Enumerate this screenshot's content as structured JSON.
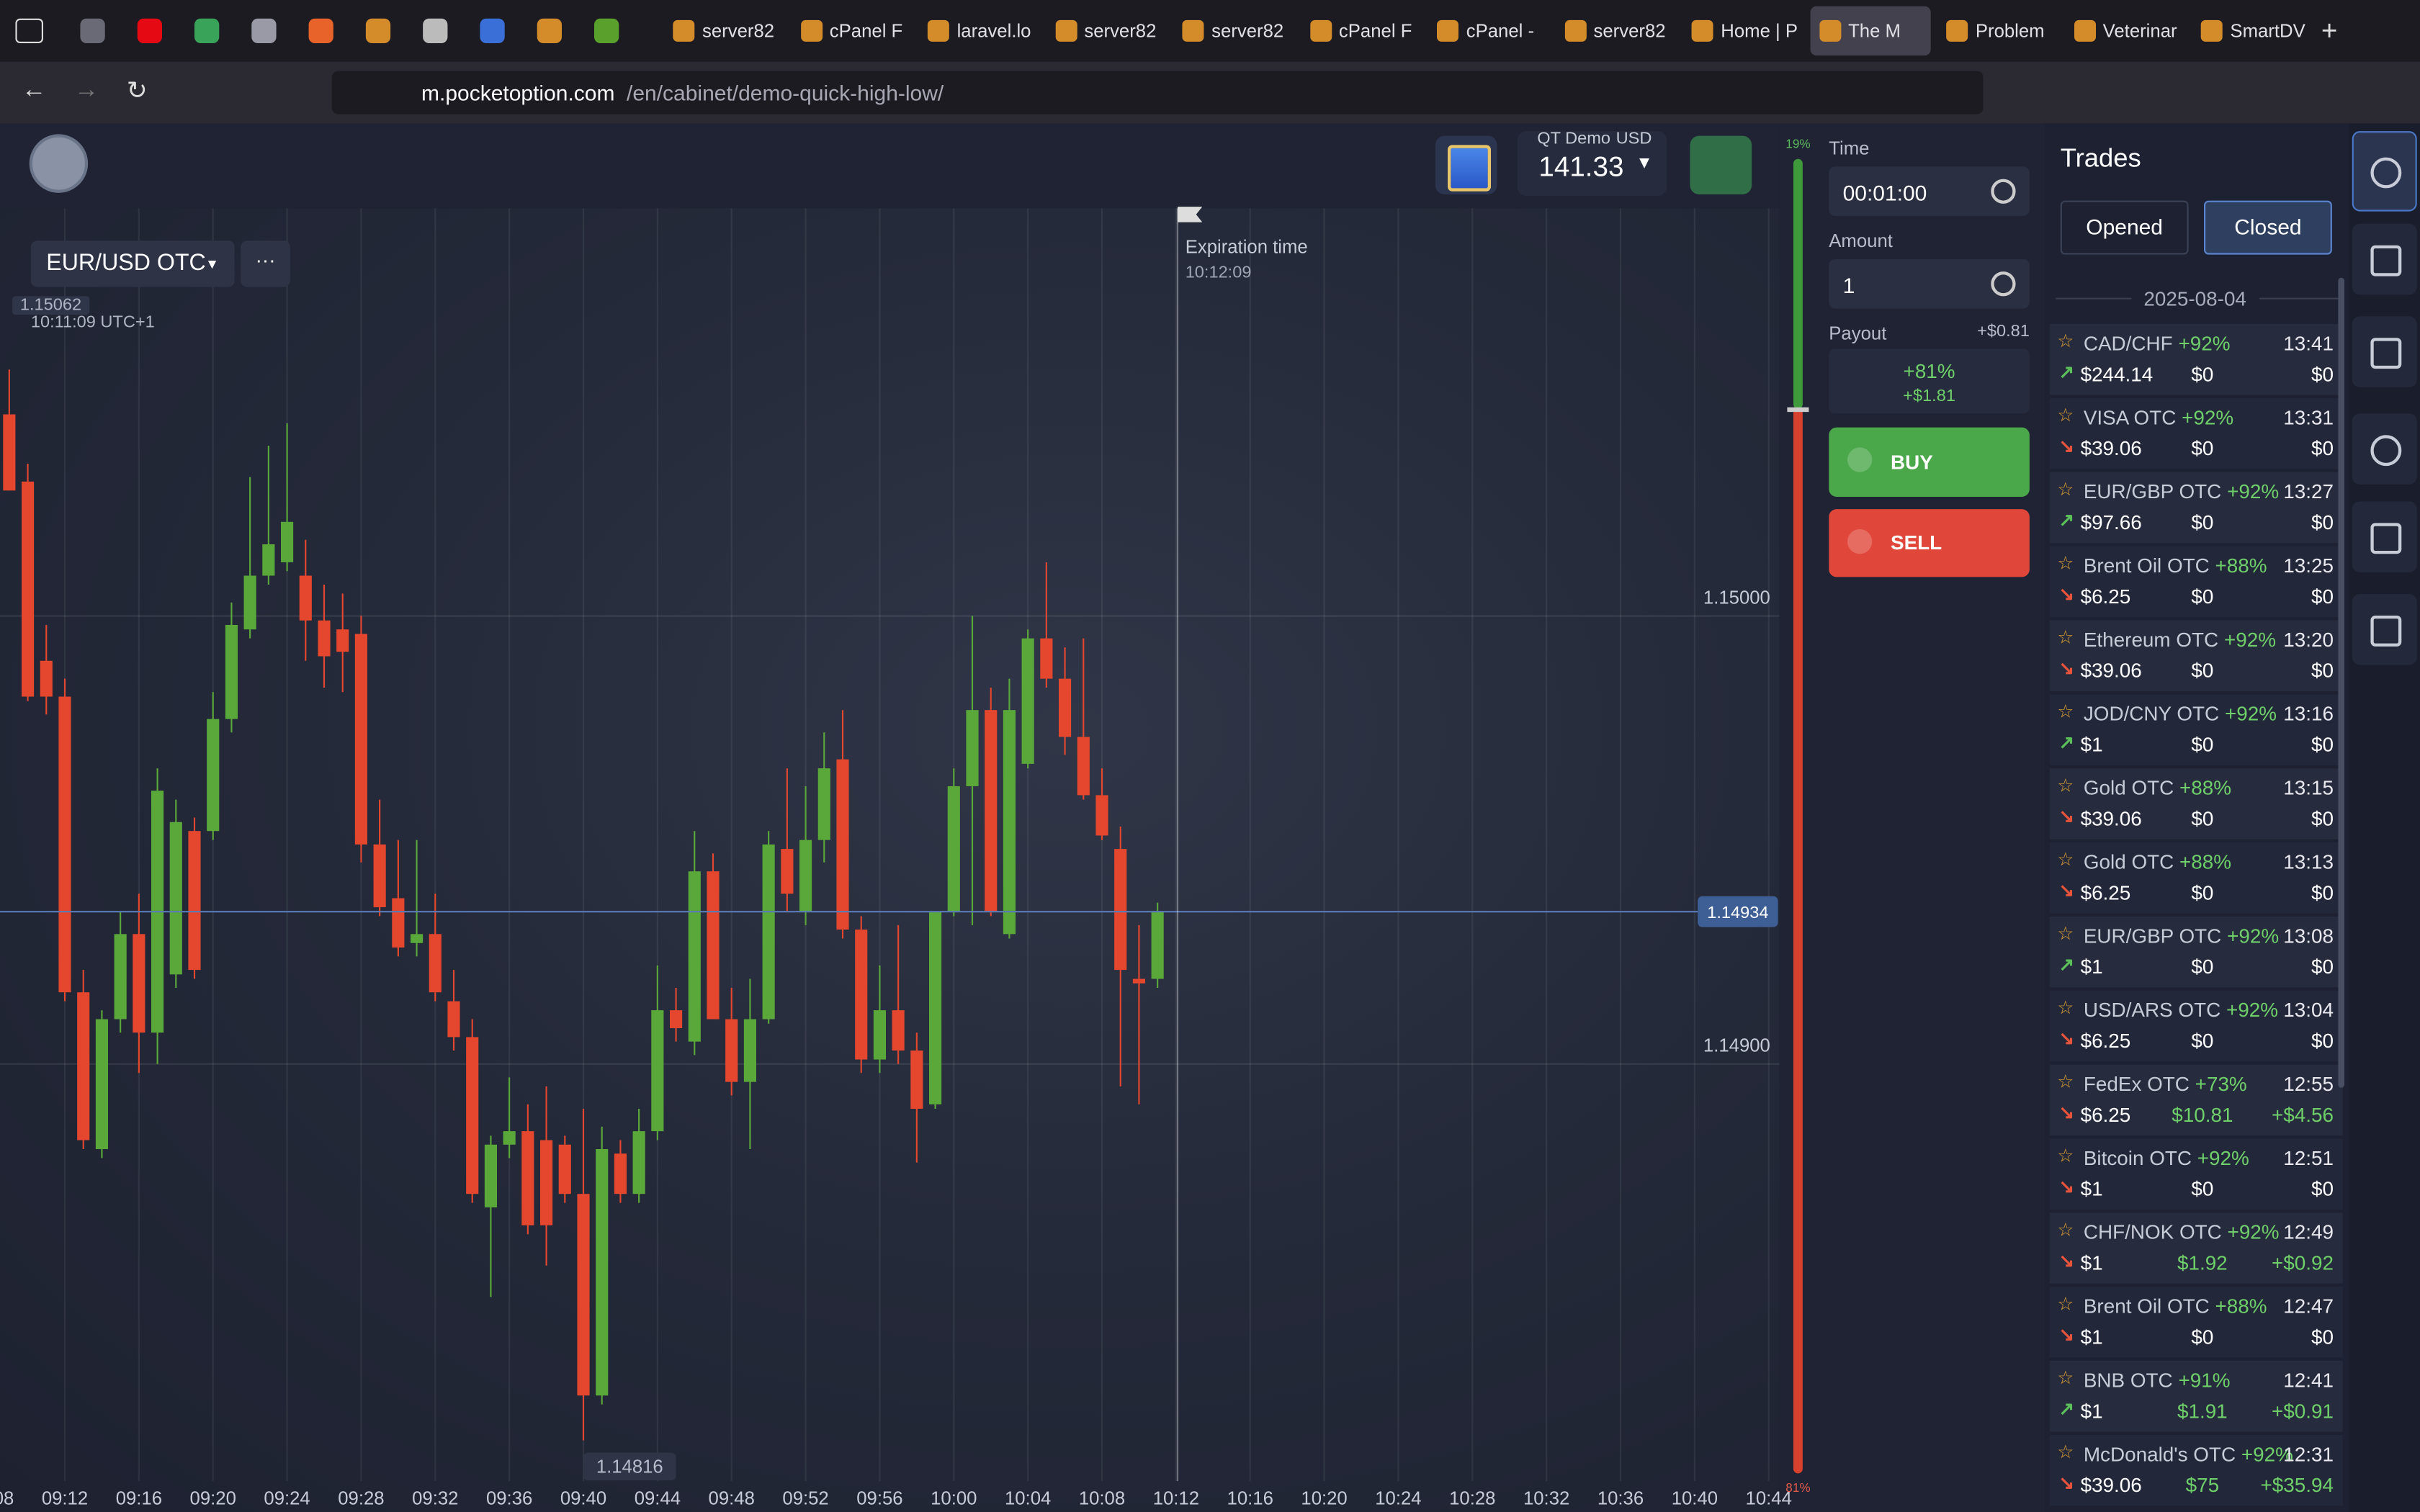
{
  "browser": {
    "tabs": [
      "server82",
      "cPanel F",
      "laravel.lo",
      "server82",
      "server82",
      "cPanel F",
      "cPanel -",
      "server82",
      "Home | P",
      "The M",
      "Problem",
      "Veterinar",
      "SmartDV"
    ],
    "active_tab": 9,
    "url_domain": "m.pocketoption.com",
    "url_path": "/en/cabinet/demo-quick-high-low/"
  },
  "header": {
    "account": "QT Demo",
    "currency": "USD",
    "balance": "141.33"
  },
  "chart": {
    "type": "candlestick",
    "asset": "EUR/USD OTC",
    "crosshair_price": 1.15062,
    "crosshair_time": "10:11:09 UTC+1",
    "expiration_label": "Expiration time",
    "expiration_time": "10:12:09",
    "current_price": 1.14934,
    "low_price": 1.14816,
    "ylim": [
      1.148,
      1.15091
    ],
    "yticks": [
      {
        "value": 1.15,
        "label": "1.15000"
      },
      {
        "value": 1.149,
        "label": "1.14900"
      }
    ],
    "xticks": [
      "09:08",
      "09:12",
      "09:16",
      "09:20",
      "09:24",
      "09:28",
      "09:32",
      "09:36",
      "09:40",
      "09:44",
      "09:48",
      "09:52",
      "09:56",
      "10:00",
      "10:04",
      "10:08",
      "10:12",
      "10:16",
      "10:20",
      "10:24",
      "10:28",
      "10:32",
      "10:36",
      "10:40",
      "10:44"
    ],
    "up_color": "#5aa83a",
    "down_color": "#e4472d",
    "candles": {
      "open": [
        1.15045,
        1.1503,
        1.1499,
        1.14982,
        1.14916,
        1.14881,
        1.1491,
        1.14929,
        1.14907,
        1.1492,
        1.14952,
        1.14952,
        1.14977,
        1.14997,
        1.15009,
        1.15012,
        1.15009,
        1.14999,
        1.14997,
        1.14996,
        1.14949,
        1.14937,
        1.14927,
        1.14929,
        1.14914,
        1.14906,
        1.14868,
        1.14882,
        1.14885,
        1.14883,
        1.14882,
        1.14871,
        1.14826,
        1.1488,
        1.14871,
        1.14885,
        1.14912,
        1.14905,
        1.14943,
        1.1491,
        1.14896,
        1.1491,
        1.14948,
        1.14934,
        1.1495,
        1.14968,
        1.1493,
        1.14901,
        1.14912,
        1.14903,
        1.14891,
        1.14934,
        1.14962,
        1.14979,
        1.14929,
        1.14967,
        1.14995,
        1.14986,
        1.14973,
        1.1496,
        1.14948,
        1.14919,
        1.14919
      ],
      "high": [
        1.15055,
        1.15034,
        1.14998,
        1.14986,
        1.14921,
        1.14912,
        1.14934,
        1.14938,
        1.14966,
        1.14959,
        1.14955,
        1.14983,
        1.15003,
        1.15031,
        1.15038,
        1.15043,
        1.15017,
        1.15007,
        1.15005,
        1.15,
        1.14959,
        1.1495,
        1.1495,
        1.14938,
        1.14921,
        1.1491,
        1.14884,
        1.14897,
        1.14891,
        1.14895,
        1.14884,
        1.1489,
        1.14886,
        1.14883,
        1.1489,
        1.14922,
        1.14917,
        1.14952,
        1.14947,
        1.14917,
        1.14919,
        1.14952,
        1.14966,
        1.14962,
        1.14974,
        1.14979,
        1.14933,
        1.14922,
        1.14931,
        1.14907,
        1.14934,
        1.14966,
        1.15,
        1.14984,
        1.14986,
        1.14997,
        1.15012,
        1.14993,
        1.14995,
        1.14966,
        1.14953,
        1.14931,
        1.14936
      ],
      "low": [
        1.15028,
        1.14981,
        1.14978,
        1.14914,
        1.14881,
        1.14879,
        1.14907,
        1.14898,
        1.149,
        1.14917,
        1.14919,
        1.1495,
        1.14974,
        1.14995,
        1.15007,
        1.1501,
        1.1499,
        1.14984,
        1.14983,
        1.14945,
        1.14933,
        1.14924,
        1.14924,
        1.14914,
        1.14903,
        1.14869,
        1.14848,
        1.14879,
        1.14862,
        1.14855,
        1.14869,
        1.14816,
        1.14824,
        1.14869,
        1.14869,
        1.14883,
        1.14905,
        1.14902,
        1.1491,
        1.14893,
        1.14881,
        1.14909,
        1.14934,
        1.14931,
        1.14945,
        1.14928,
        1.14898,
        1.14898,
        1.149,
        1.14878,
        1.1489,
        1.14933,
        1.14931,
        1.14933,
        1.14928,
        1.14966,
        1.14984,
        1.14969,
        1.14959,
        1.1495,
        1.14895,
        1.14891,
        1.14917
      ],
      "close": [
        1.15028,
        1.14982,
        1.14982,
        1.14916,
        1.14883,
        1.1491,
        1.14929,
        1.14907,
        1.14961,
        1.14954,
        1.14921,
        1.14977,
        1.14998,
        1.15009,
        1.15016,
        1.15021,
        1.14999,
        1.14991,
        1.14992,
        1.14949,
        1.14935,
        1.14926,
        1.14929,
        1.14916,
        1.14906,
        1.14871,
        1.14882,
        1.14885,
        1.14864,
        1.14864,
        1.14871,
        1.14826,
        1.14881,
        1.14871,
        1.14885,
        1.14912,
        1.14908,
        1.14943,
        1.1491,
        1.14896,
        1.1491,
        1.14949,
        1.14938,
        1.1495,
        1.14966,
        1.1493,
        1.14901,
        1.14912,
        1.14903,
        1.1489,
        1.14934,
        1.14962,
        1.14979,
        1.14934,
        1.14979,
        1.14995,
        1.14986,
        1.14973,
        1.1496,
        1.14951,
        1.14921,
        1.14918,
        1.14934
      ]
    }
  },
  "meter": {
    "values": [
      19,
      81
    ],
    "value_labels": [
      "19%",
      "81%"
    ],
    "colors": [
      "#3f9a3c",
      "#d9412f"
    ]
  },
  "order": {
    "time_label": "Time",
    "time": "00:01:00",
    "amount_label": "Amount",
    "amount": "1",
    "payout_label": "Payout",
    "payout_profit": "+$0.81",
    "payout_percent": "+81%",
    "payout_total": "+$1.81",
    "buy": "BUY",
    "sell": "SELL"
  },
  "trades": {
    "title": "Trades",
    "tabs": [
      "Opened",
      "Closed"
    ],
    "active_tab": 1,
    "date": "2025-08-04",
    "items": [
      {
        "asset": "CAD/CHF",
        "percent": "+92%",
        "time": "13:41",
        "direction": "up",
        "amount": "$244.14",
        "payout": "$0",
        "profit": "$0"
      },
      {
        "asset": "VISA OTC",
        "percent": "+92%",
        "time": "13:31",
        "direction": "down",
        "amount": "$39.06",
        "payout": "$0",
        "profit": "$0"
      },
      {
        "asset": "EUR/GBP OTC",
        "percent": "+92%",
        "time": "13:27",
        "direction": "up",
        "amount": "$97.66",
        "payout": "$0",
        "profit": "$0"
      },
      {
        "asset": "Brent Oil OTC",
        "percent": "+88%",
        "time": "13:25",
        "direction": "down",
        "amount": "$6.25",
        "payout": "$0",
        "profit": "$0"
      },
      {
        "asset": "Ethereum OTC",
        "percent": "+92%",
        "time": "13:20",
        "direction": "down",
        "amount": "$39.06",
        "payout": "$0",
        "profit": "$0"
      },
      {
        "asset": "JOD/CNY OTC",
        "percent": "+92%",
        "time": "13:16",
        "direction": "up",
        "amount": "$1",
        "payout": "$0",
        "profit": "$0"
      },
      {
        "asset": "Gold OTC",
        "percent": "+88%",
        "time": "13:15",
        "direction": "down",
        "amount": "$39.06",
        "payout": "$0",
        "profit": "$0"
      },
      {
        "asset": "Gold OTC",
        "percent": "+88%",
        "time": "13:13",
        "direction": "down",
        "amount": "$6.25",
        "payout": "$0",
        "profit": "$0"
      },
      {
        "asset": "EUR/GBP OTC",
        "percent": "+92%",
        "time": "13:08",
        "direction": "up",
        "amount": "$1",
        "payout": "$0",
        "profit": "$0"
      },
      {
        "asset": "USD/ARS OTC",
        "percent": "+92%",
        "time": "13:04",
        "direction": "down",
        "amount": "$6.25",
        "payout": "$0",
        "profit": "$0"
      },
      {
        "asset": "FedEx OTC",
        "percent": "+73%",
        "time": "12:55",
        "direction": "down",
        "amount": "$6.25",
        "payout": "$10.81",
        "profit": "+$4.56"
      },
      {
        "asset": "Bitcoin OTC",
        "percent": "+92%",
        "time": "12:51",
        "direction": "down",
        "amount": "$1",
        "payout": "$0",
        "profit": "$0"
      },
      {
        "asset": "CHF/NOK OTC",
        "percent": "+92%",
        "time": "12:49",
        "direction": "down",
        "amount": "$1",
        "payout": "$1.92",
        "profit": "+$0.92"
      },
      {
        "asset": "Brent Oil OTC",
        "percent": "+88%",
        "time": "12:47",
        "direction": "down",
        "amount": "$1",
        "payout": "$0",
        "profit": "$0"
      },
      {
        "asset": "BNB OTC",
        "percent": "+91%",
        "time": "12:41",
        "direction": "up",
        "amount": "$1",
        "payout": "$1.91",
        "profit": "+$0.91"
      },
      {
        "asset": "McDonald's OTC",
        "percent": "+92%",
        "time": "12:31",
        "direction": "down",
        "amount": "$39.06",
        "payout": "$75",
        "profit": "+$35.94"
      }
    ]
  }
}
